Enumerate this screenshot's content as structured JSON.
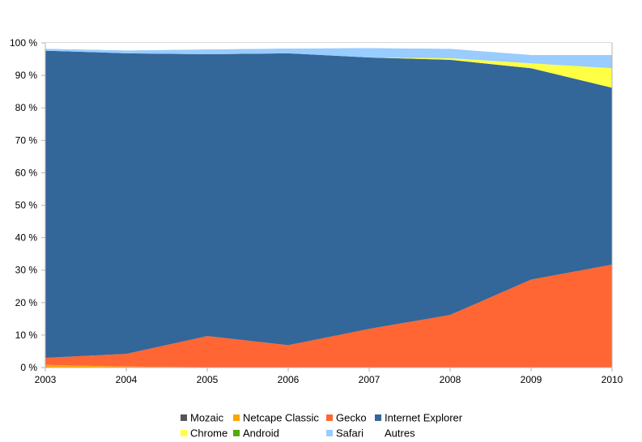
{
  "chart_data": {
    "type": "area",
    "stacked": true,
    "x": [
      "2003",
      "2004",
      "2005",
      "2006",
      "2007",
      "2008",
      "2009",
      "2010"
    ],
    "ylim": [
      0,
      100
    ],
    "yticks": [
      "0 %",
      "10 %",
      "20 %",
      "30 %",
      "40 %",
      "50 %",
      "60 %",
      "70 %",
      "80 %",
      "90 %",
      "100 %"
    ],
    "grid": true,
    "legend_position": "bottom",
    "series": [
      {
        "name": "Mozaic",
        "color": "#555555",
        "values": [
          0,
          0,
          0,
          0,
          0,
          0,
          0,
          0
        ]
      },
      {
        "name": "Netcape Classic",
        "color": "#ffa500",
        "values": [
          0.8,
          0.3,
          0.1,
          0.1,
          0.0,
          0.0,
          0.0,
          0.0
        ]
      },
      {
        "name": "Gecko",
        "color": "#ff6633",
        "values": [
          2.2,
          3.9,
          9.6,
          6.8,
          11.9,
          16.2,
          27.1,
          31.7
        ]
      },
      {
        "name": "Internet Explorer",
        "color": "#336699",
        "values": [
          94.6,
          92.6,
          86.8,
          89.9,
          83.6,
          78.6,
          65.1,
          54.5
        ]
      },
      {
        "name": "Chrome",
        "color": "#ffff44",
        "values": [
          0,
          0,
          0,
          0,
          0,
          0.5,
          1.5,
          6.0
        ]
      },
      {
        "name": "Android",
        "color": "#55aa00",
        "values": [
          0,
          0,
          0,
          0,
          0,
          0,
          0,
          0
        ]
      },
      {
        "name": "Safari",
        "color": "#99ccff",
        "values": [
          0.6,
          0.9,
          1.5,
          1.5,
          2.9,
          2.9,
          2.6,
          4.1
        ]
      },
      {
        "name": "Autres",
        "color": "#ffffff",
        "values": [
          1.8,
          2.3,
          2.0,
          1.7,
          1.6,
          1.8,
          3.7,
          3.7
        ]
      }
    ]
  }
}
